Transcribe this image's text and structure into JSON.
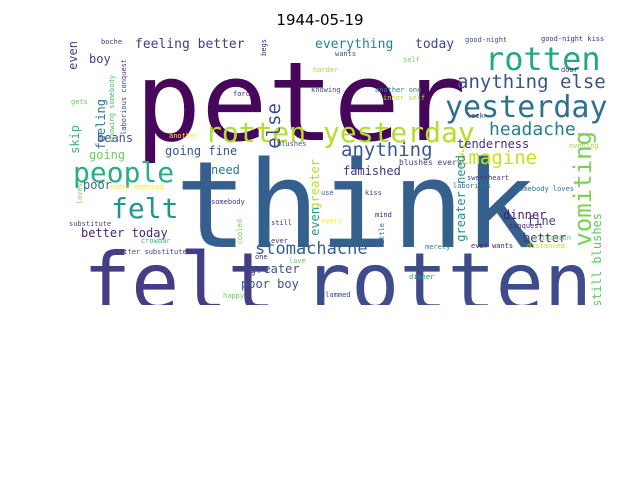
{
  "title": "1944-05-19",
  "words": [
    {
      "text": "peter",
      "color": "#46075a"
    },
    {
      "text": "think",
      "color": "#35608d"
    },
    {
      "text": "felt",
      "color": "#433e85"
    },
    {
      "text": "rotten",
      "color": "#3e4c8a"
    },
    {
      "text": "rotten yesterday",
      "color": "#b5de2b"
    },
    {
      "text": "rotten",
      "color": "#22a884"
    },
    {
      "text": "yesterday",
      "color": "#2c718e"
    },
    {
      "text": "people",
      "color": "#29af7f"
    },
    {
      "text": "felt",
      "color": "#1f968b"
    },
    {
      "text": "vomiting",
      "color": "#7ad151"
    },
    {
      "text": "anything else",
      "color": "#3b528b"
    },
    {
      "text": "headache",
      "color": "#277f8e"
    },
    {
      "text": "stomachache",
      "color": "#355f8d"
    },
    {
      "text": "anything",
      "color": "#365c8d"
    },
    {
      "text": "imagine",
      "color": "#c8e020"
    },
    {
      "text": "else",
      "color": "#3d4e8a"
    },
    {
      "text": "feeling better",
      "color": "#433d84"
    },
    {
      "text": "everything",
      "color": "#26828e"
    },
    {
      "text": "today",
      "color": "#3f4788"
    },
    {
      "text": "even",
      "color": "#414287"
    },
    {
      "text": "boy",
      "color": "#424086"
    },
    {
      "text": "feeling",
      "color": "#2a788e"
    },
    {
      "text": "skip",
      "color": "#35b779"
    },
    {
      "text": "beans",
      "color": "#3b528b"
    },
    {
      "text": "going",
      "color": "#6ece58"
    },
    {
      "text": "going fine",
      "color": "#3b528b"
    },
    {
      "text": "need",
      "color": "#2a788e"
    },
    {
      "text": "poor",
      "color": "#31688e"
    },
    {
      "text": "tenderness",
      "color": "#472f7d"
    },
    {
      "text": "famished",
      "color": "#46337e"
    },
    {
      "text": "greater need",
      "color": "#21918c"
    },
    {
      "text": "greater",
      "color": "#b5de2b"
    },
    {
      "text": "even",
      "color": "#1fa188"
    },
    {
      "text": "dinner",
      "color": "#481f70"
    },
    {
      "text": "fine",
      "color": "#3e4989"
    },
    {
      "text": "better",
      "color": "#443983"
    },
    {
      "text": "still blushes",
      "color": "#5ec962"
    },
    {
      "text": "better today",
      "color": "#482576"
    },
    {
      "text": "greater",
      "color": "#3b528b"
    },
    {
      "text": "poor boy",
      "color": "#3b528b"
    },
    {
      "text": "blushes every",
      "color": "#443a83"
    },
    {
      "text": "boche",
      "color": "#46327e"
    },
    {
      "text": "good-night",
      "color": "#3e4a89"
    },
    {
      "text": "good-night kiss",
      "color": "#472c7a"
    },
    {
      "text": "begs",
      "color": "#482374"
    },
    {
      "text": "self",
      "color": "#7ad151"
    },
    {
      "text": "harder",
      "color": "#a5db36"
    },
    {
      "text": "wants",
      "color": "#3e4989"
    },
    {
      "text": "door",
      "color": "#472d7b"
    },
    {
      "text": "laborious conquest",
      "color": "#433e85"
    },
    {
      "text": "knowing somebody",
      "color": "#4ac16d"
    },
    {
      "text": "another one",
      "color": "#26828e"
    },
    {
      "text": "inner self",
      "color": "#bddf26"
    },
    {
      "text": "knowing",
      "color": "#3e4989"
    },
    {
      "text": "force",
      "color": "#482475"
    },
    {
      "text": "lock",
      "color": "#46327e"
    },
    {
      "text": "gets",
      "color": "#6ece58"
    },
    {
      "text": "another",
      "color": "#fde725"
    },
    {
      "text": "blushes",
      "color": "#3b528b"
    },
    {
      "text": "evening",
      "color": "#a0da39"
    },
    {
      "text": "every evening",
      "color": "#fde725"
    },
    {
      "text": "somebody loves",
      "color": "#2c728e"
    },
    {
      "text": "loves",
      "color": "#7ad151"
    },
    {
      "text": "substitute",
      "color": "#3e4989"
    },
    {
      "text": "crowbar",
      "color": "#35b779"
    },
    {
      "text": "still",
      "color": "#472c7a"
    },
    {
      "text": "somebody",
      "color": "#46327e"
    },
    {
      "text": "cooled",
      "color": "#7ad151"
    },
    {
      "text": "use",
      "color": "#31688e"
    },
    {
      "text": "kiss",
      "color": "#3e4989"
    },
    {
      "text": "sweetheart",
      "color": "#433e85"
    },
    {
      "text": "laborious",
      "color": "#2c728e"
    },
    {
      "text": "conquest",
      "color": "#482677"
    },
    {
      "text": "distanced",
      "color": "#c8e020"
    },
    {
      "text": "situation",
      "color": "#6ece58"
    },
    {
      "text": "mind",
      "color": "#482677"
    },
    {
      "text": "every",
      "color": "#fde725"
    },
    {
      "text": "ever",
      "color": "#472c7a"
    },
    {
      "text": "ever wants",
      "color": "#482374"
    },
    {
      "text": "merely",
      "color": "#26828e"
    },
    {
      "text": "little",
      "color": "#2a788e"
    },
    {
      "text": "dinner",
      "color": "#21918c"
    },
    {
      "text": "better substitute",
      "color": "#424086"
    },
    {
      "text": "happy",
      "color": "#6ece58"
    },
    {
      "text": "slammed",
      "color": "#3e4989"
    },
    {
      "text": "one",
      "color": "#472c7a"
    },
    {
      "text": "love",
      "color": "#5ec962"
    }
  ]
}
